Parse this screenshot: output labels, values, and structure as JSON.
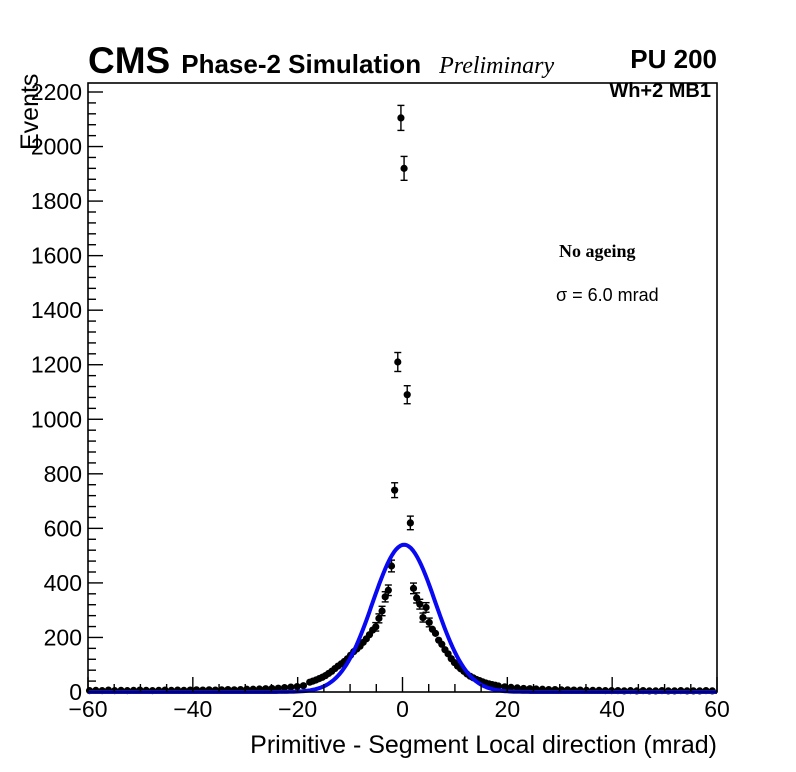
{
  "header": {
    "cms": "CMS",
    "subtitle": "Phase-2 Simulation",
    "preliminary": "Preliminary",
    "pileup": "PU 200"
  },
  "plot_labels": {
    "region": "Wh+2 MB1",
    "legend_line1": "No ageing",
    "legend_line2": "σ = 6.0 mrad"
  },
  "chart_data": {
    "type": "scatter",
    "title": "",
    "xlabel": "Primitive - Segment Local direction (mrad)",
    "ylabel": "Events",
    "xlim": [
      -60,
      60
    ],
    "ylim": [
      0,
      2233
    ],
    "x_major_ticks": [
      -60,
      -40,
      -20,
      0,
      20,
      40,
      60
    ],
    "x_minor_step": 5,
    "y_major_ticks": [
      0,
      200,
      400,
      600,
      800,
      1000,
      1200,
      1400,
      1600,
      1800,
      2000,
      2200
    ],
    "y_minor_step": 40,
    "grid": false,
    "legend_position": "top-right-inside",
    "marker": {
      "shape": "filled-circle",
      "color": "#000000",
      "radius": 3.6
    },
    "error_mode": "poisson_sqrt",
    "fit_curve": {
      "type": "gaussian",
      "amplitude": 540,
      "mean": 0.3,
      "sigma": 6.0,
      "sigma_label": "σ = 6.0 mrad",
      "color": "#0808f2",
      "line_width": 4
    },
    "points": [
      [
        -59.7,
        5
      ],
      [
        -58.5,
        6
      ],
      [
        -57.3,
        5
      ],
      [
        -56.1,
        7
      ],
      [
        -54.9,
        5
      ],
      [
        -53.7,
        6
      ],
      [
        -52.5,
        5
      ],
      [
        -51.3,
        6
      ],
      [
        -50.1,
        7
      ],
      [
        -48.9,
        6
      ],
      [
        -47.7,
        5
      ],
      [
        -46.5,
        6
      ],
      [
        -45.3,
        7
      ],
      [
        -44.1,
        6
      ],
      [
        -42.9,
        7
      ],
      [
        -41.7,
        6
      ],
      [
        -40.5,
        7
      ],
      [
        -39.3,
        8
      ],
      [
        -38.1,
        7
      ],
      [
        -36.9,
        8
      ],
      [
        -35.7,
        7
      ],
      [
        -34.5,
        8
      ],
      [
        -33.3,
        9
      ],
      [
        -32.1,
        8
      ],
      [
        -30.9,
        9
      ],
      [
        -29.7,
        10
      ],
      [
        -28.5,
        10
      ],
      [
        -27.3,
        11
      ],
      [
        -26.1,
        12
      ],
      [
        -24.9,
        13
      ],
      [
        -23.7,
        14
      ],
      [
        -22.5,
        16
      ],
      [
        -21.3,
        18
      ],
      [
        -20.1,
        20
      ],
      [
        -18.9,
        23
      ],
      [
        -17.7,
        36
      ],
      [
        -17.1,
        40
      ],
      [
        -16.5,
        44
      ],
      [
        -15.9,
        49
      ],
      [
        -15.3,
        54
      ],
      [
        -14.7,
        60
      ],
      [
        -14.1,
        68
      ],
      [
        -13.5,
        76
      ],
      [
        -12.9,
        86
      ],
      [
        -12.3,
        95
      ],
      [
        -11.7,
        103
      ],
      [
        -11.1,
        112
      ],
      [
        -10.5,
        122
      ],
      [
        -9.9,
        135
      ],
      [
        -9.3,
        148
      ],
      [
        -8.7,
        158
      ],
      [
        -8.1,
        168
      ],
      [
        -7.5,
        182
      ],
      [
        -6.9,
        195
      ],
      [
        -6.3,
        210
      ],
      [
        -5.7,
        227
      ],
      [
        -5.1,
        239
      ],
      [
        -4.5,
        270
      ],
      [
        -3.9,
        297
      ],
      [
        -3.3,
        349
      ],
      [
        -2.7,
        373
      ],
      [
        -2.1,
        462
      ],
      [
        -1.5,
        740
      ],
      [
        -0.9,
        1210
      ],
      [
        -0.3,
        2105
      ],
      [
        0.3,
        1920
      ],
      [
        0.9,
        1090
      ],
      [
        1.5,
        620
      ],
      [
        2.1,
        380
      ],
      [
        2.7,
        345
      ],
      [
        3.3,
        322
      ],
      [
        3.9,
        273
      ],
      [
        4.5,
        310
      ],
      [
        5.1,
        255
      ],
      [
        5.7,
        230
      ],
      [
        6.3,
        215
      ],
      [
        6.9,
        190
      ],
      [
        7.5,
        175
      ],
      [
        8.1,
        155
      ],
      [
        8.7,
        140
      ],
      [
        9.3,
        122
      ],
      [
        9.9,
        108
      ],
      [
        10.5,
        95
      ],
      [
        11.1,
        85
      ],
      [
        11.7,
        76
      ],
      [
        12.3,
        66
      ],
      [
        12.9,
        58
      ],
      [
        13.5,
        52
      ],
      [
        14.1,
        46
      ],
      [
        14.7,
        42
      ],
      [
        15.3,
        37
      ],
      [
        15.9,
        33
      ],
      [
        16.5,
        30
      ],
      [
        17.1,
        27
      ],
      [
        17.7,
        25
      ],
      [
        18.3,
        22
      ],
      [
        19.5,
        19
      ],
      [
        20.7,
        17
      ],
      [
        21.9,
        15
      ],
      [
        23.1,
        13
      ],
      [
        24.3,
        12
      ],
      [
        25.5,
        11
      ],
      [
        26.7,
        10
      ],
      [
        27.9,
        9
      ],
      [
        29.1,
        9
      ],
      [
        30.3,
        8
      ],
      [
        31.5,
        8
      ],
      [
        32.7,
        7
      ],
      [
        33.9,
        7
      ],
      [
        35.1,
        6
      ],
      [
        36.3,
        6
      ],
      [
        37.5,
        6
      ],
      [
        38.7,
        5
      ],
      [
        39.9,
        5
      ],
      [
        41.1,
        5
      ],
      [
        42.3,
        4
      ],
      [
        43.5,
        5
      ],
      [
        44.7,
        4
      ],
      [
        45.9,
        5
      ],
      [
        47.1,
        4
      ],
      [
        48.3,
        4
      ],
      [
        49.5,
        5
      ],
      [
        50.7,
        4
      ],
      [
        51.9,
        4
      ],
      [
        53.1,
        5
      ],
      [
        54.3,
        4
      ],
      [
        55.5,
        4
      ],
      [
        56.7,
        4
      ],
      [
        57.9,
        5
      ],
      [
        59.1,
        4
      ]
    ]
  }
}
